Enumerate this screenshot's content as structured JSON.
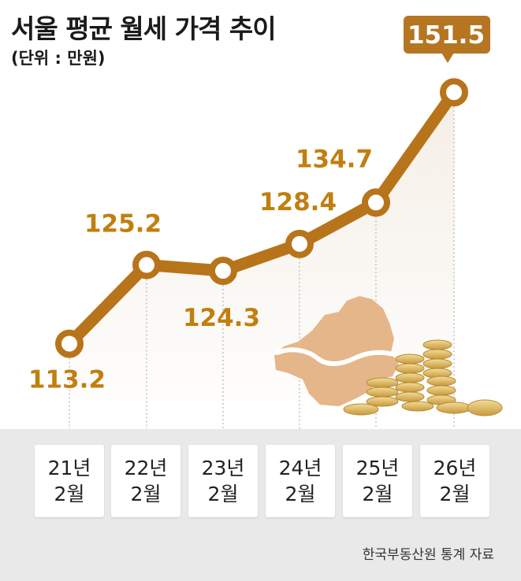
{
  "header": {
    "title": "서울 평균 월세 가격 추이",
    "unit": "(단위 : 만원)"
  },
  "source": "한국부동산원 통계 자료",
  "colors": {
    "line": "#b8741a",
    "label": "#c07f10",
    "callout": "#b67521",
    "map": "#e5b68a",
    "coin": "#d9b35a",
    "band": "#e9e9e9"
  },
  "chart_data": {
    "type": "line",
    "title": "서울 평균 월세 가격 추이",
    "ylabel": "",
    "xlabel": "",
    "unit": "만원",
    "categories": [
      "21년 2월",
      "22년 2월",
      "23년 2월",
      "24년 2월",
      "25년 2월",
      "26년 2월"
    ],
    "category_lines": [
      [
        "21년",
        "2월"
      ],
      [
        "22년",
        "2월"
      ],
      [
        "23년",
        "2월"
      ],
      [
        "24년",
        "2월"
      ],
      [
        "25년",
        "2월"
      ],
      [
        "26년",
        "2월"
      ]
    ],
    "values": [
      113.2,
      125.2,
      124.3,
      128.4,
      134.7,
      151.5
    ],
    "value_labels": [
      "113.2",
      "125.2",
      "124.3",
      "128.4",
      "134.7",
      "151.5"
    ],
    "highlight_index": 5,
    "ylim": [
      105,
      155
    ],
    "grid": false,
    "legend": "none"
  }
}
